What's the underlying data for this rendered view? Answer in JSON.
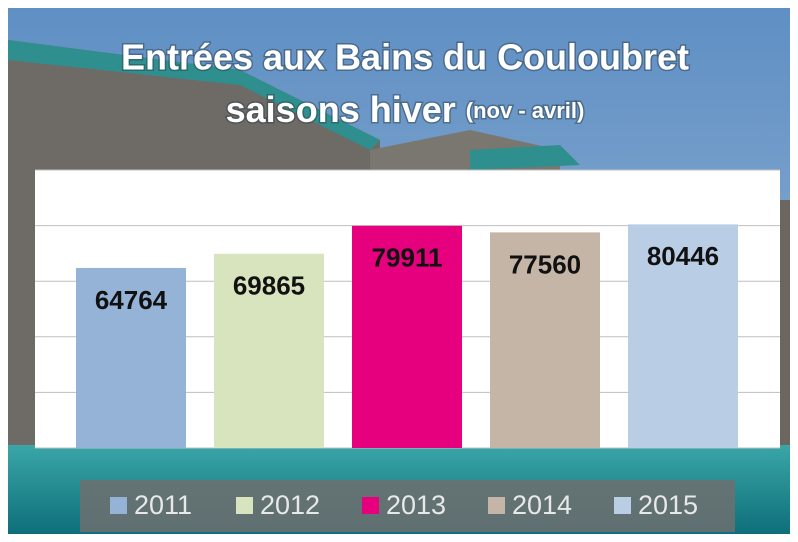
{
  "chart_data": {
    "type": "bar",
    "title": "Entrées aux Bains du Couloubret",
    "subtitle": "saisons hiver",
    "note": "(nov - avril)",
    "categories": [
      null
    ],
    "series": [
      {
        "name": "2011",
        "color": "#95b3d7",
        "values": [
          64764
        ]
      },
      {
        "name": "2012",
        "color": "#d7e4bd",
        "values": [
          69865
        ]
      },
      {
        "name": "2013",
        "color": "#e6007e",
        "values": [
          79911
        ]
      },
      {
        "name": "2014",
        "color": "#c4b5a7",
        "values": [
          77560
        ]
      },
      {
        "name": "2015",
        "color": "#b9cde5",
        "values": [
          80446
        ]
      }
    ],
    "ylim": [
      0,
      100000
    ],
    "yticks": [
      0,
      20000,
      40000,
      60000,
      80000,
      100000
    ],
    "grid": true,
    "legend": "bottom"
  }
}
